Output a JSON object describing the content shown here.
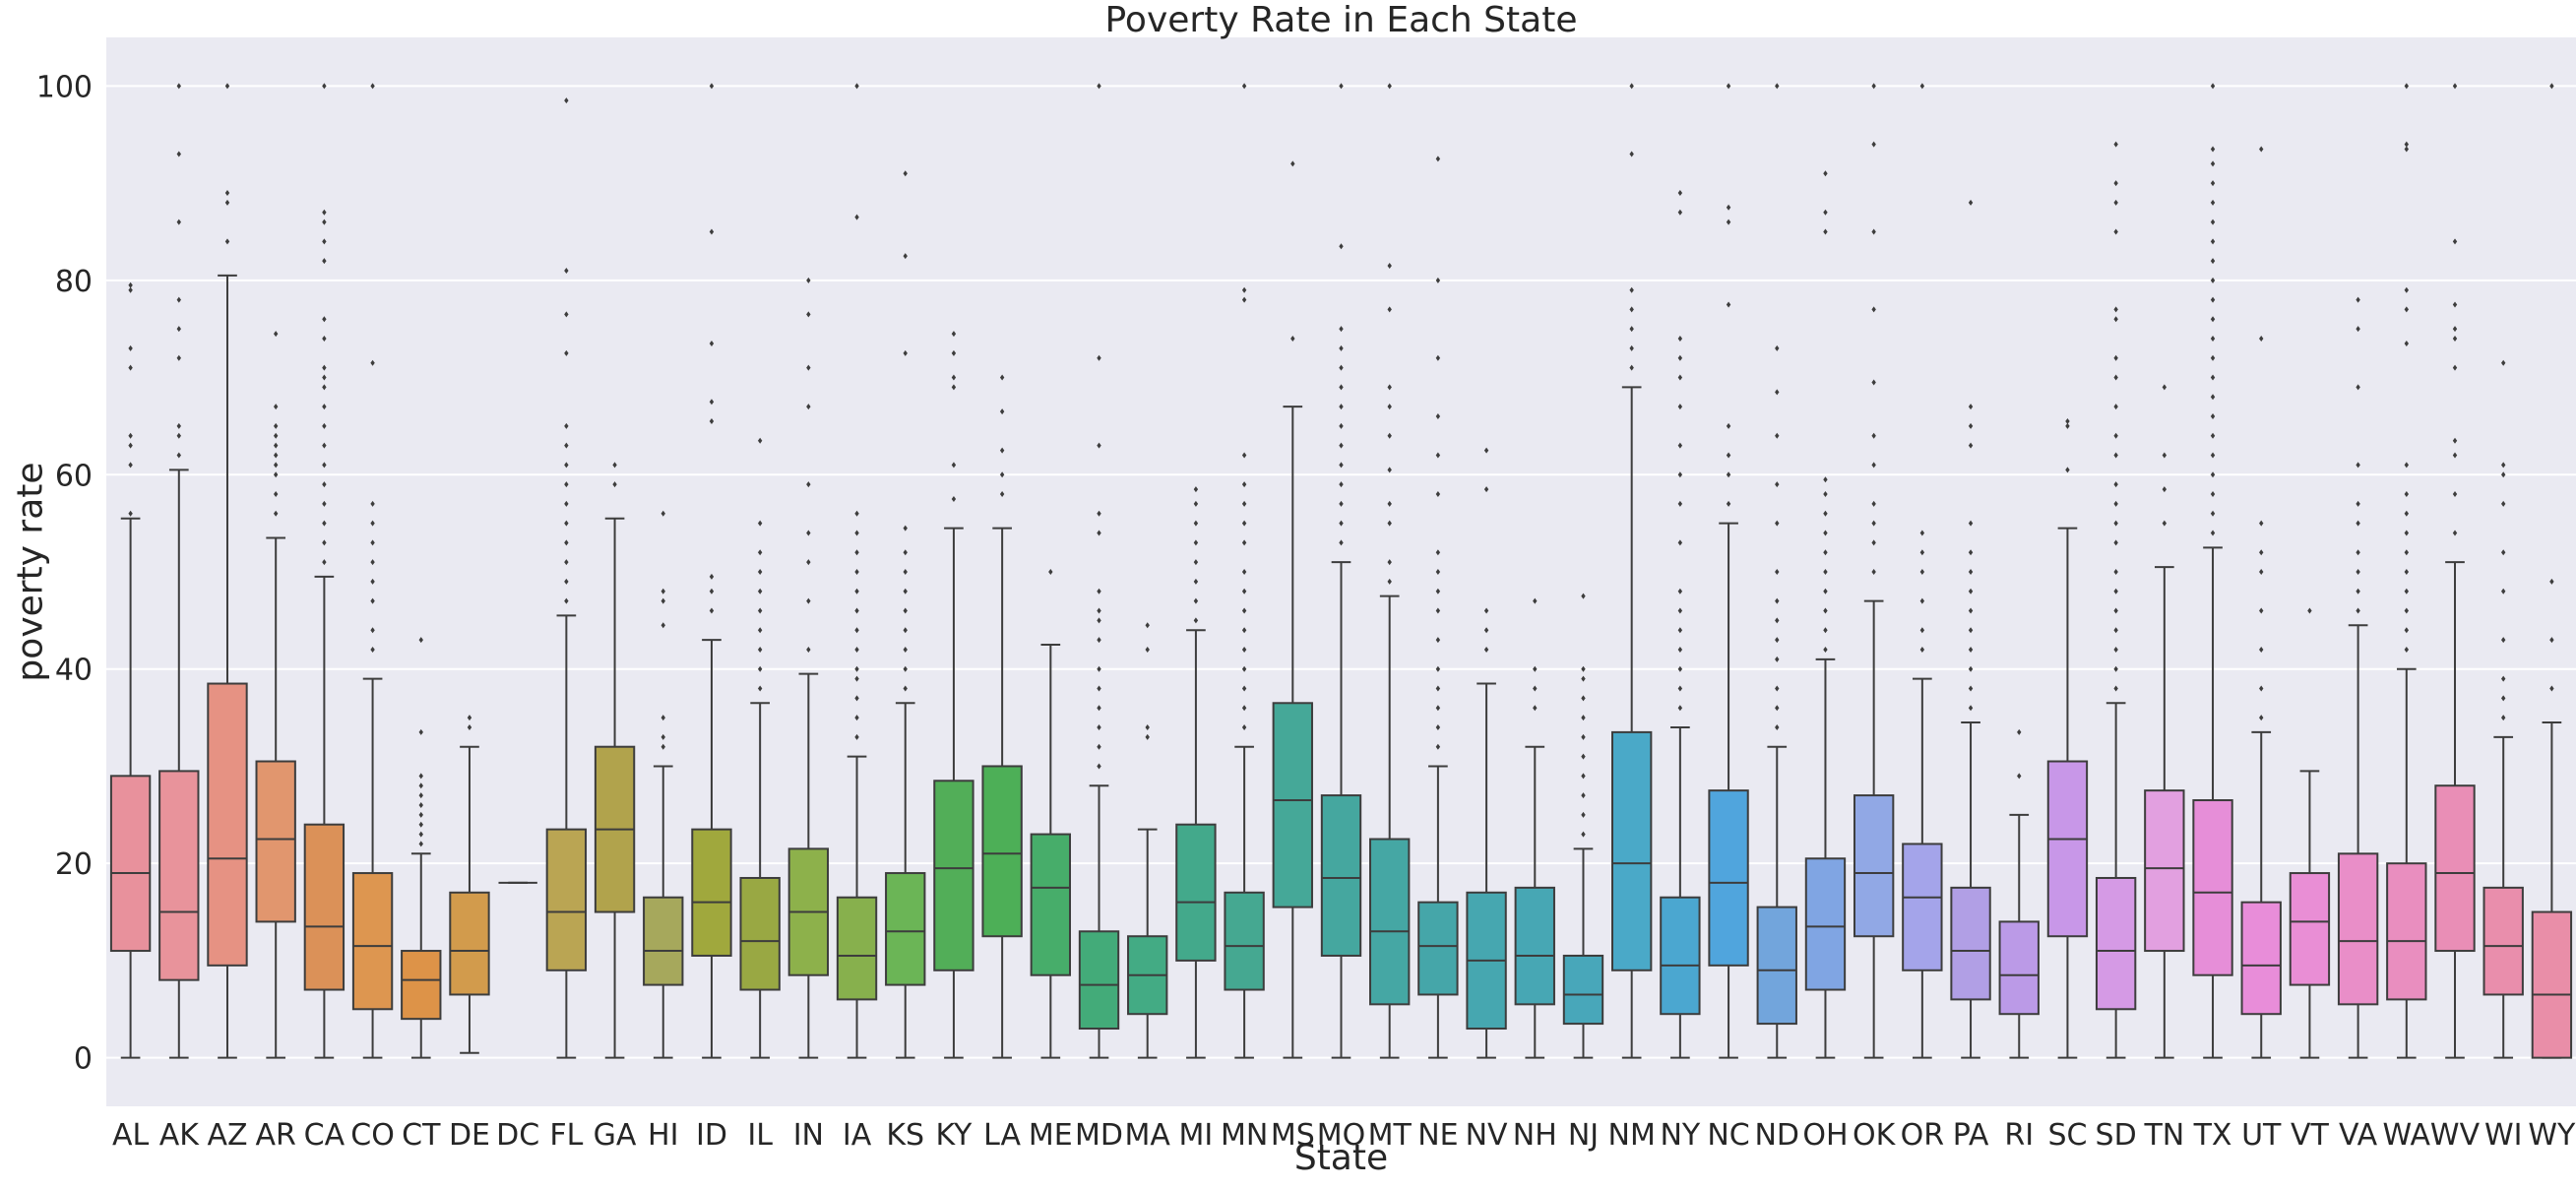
{
  "chart_data": {
    "type": "box",
    "title": "Poverty Rate in Each State",
    "xlabel": "State",
    "ylabel": "poverty rate",
    "ylim": [
      -5,
      105
    ],
    "yticks": [
      0,
      20,
      40,
      60,
      80,
      100
    ],
    "ytick_labels": [
      "0",
      "20",
      "40",
      "60",
      "80",
      "100"
    ],
    "grid": true,
    "background": "#eaeaf2",
    "categories": [
      "AL",
      "AK",
      "AZ",
      "AR",
      "CA",
      "CO",
      "CT",
      "DE",
      "DC",
      "FL",
      "GA",
      "HI",
      "ID",
      "IL",
      "IN",
      "IA",
      "KS",
      "KY",
      "LA",
      "ME",
      "MD",
      "MA",
      "MI",
      "MN",
      "MS",
      "MO",
      "MT",
      "NE",
      "NV",
      "NH",
      "NJ",
      "NM",
      "NY",
      "NC",
      "ND",
      "OH",
      "OK",
      "OR",
      "PA",
      "RI",
      "SC",
      "SD",
      "TN",
      "TX",
      "UT",
      "VT",
      "VA",
      "WA",
      "WV",
      "WI",
      "WY"
    ],
    "colors": [
      "#e8919c",
      "#e8939b",
      "#e69283",
      "#e1966e",
      "#db9158",
      "#dd9650",
      "#dd9348",
      "#d29b4c",
      "#c9a050",
      "#baa553",
      "#b1a34c",
      "#a6a85c",
      "#a0a83d",
      "#99a843",
      "#8db14b",
      "#87b04d",
      "#6bb556",
      "#52ae58",
      "#4daf57",
      "#47ad6a",
      "#43ab79",
      "#43ab84",
      "#43a98b",
      "#45a891",
      "#45a898",
      "#45a79f",
      "#45a7a4",
      "#45a6a9",
      "#46a7b0",
      "#47a7b4",
      "#48a7ba",
      "#4aa9c8",
      "#4ba7d0",
      "#50a5dd",
      "#72a5dc",
      "#80a5e3",
      "#91a8e5",
      "#a4a4ea",
      "#b19fe5",
      "#bb9ae7",
      "#c897e8",
      "#d59ae5",
      "#e2a0e0",
      "#e68ed8",
      "#e88dd9",
      "#e98ed5",
      "#e98ec8",
      "#e98ebf",
      "#e98eb6",
      "#e98eac",
      "#e98ea8"
    ],
    "boxes": [
      {
        "state": "AL",
        "whislo": 0,
        "q1": 11,
        "med": 19,
        "q3": 29,
        "whishi": 55.5,
        "fliers": [
          56,
          61,
          63,
          64,
          71,
          73,
          79,
          79.5
        ]
      },
      {
        "state": "AK",
        "whislo": 0,
        "q1": 8,
        "med": 15,
        "q3": 29.5,
        "whishi": 60.5,
        "fliers": [
          62,
          64,
          65,
          72,
          75,
          78,
          86,
          93,
          100
        ]
      },
      {
        "state": "AZ",
        "whislo": 0,
        "q1": 9.5,
        "med": 20.5,
        "q3": 38.5,
        "whishi": 80.5,
        "fliers": [
          84,
          88,
          89,
          100
        ]
      },
      {
        "state": "AR",
        "whislo": 0,
        "q1": 14,
        "med": 22.5,
        "q3": 30.5,
        "whishi": 53.5,
        "fliers": [
          56,
          58,
          60,
          61,
          62,
          63,
          64,
          65,
          67,
          74.5
        ]
      },
      {
        "state": "CA",
        "whislo": 0,
        "q1": 7,
        "med": 13.5,
        "q3": 24,
        "whishi": 49.5,
        "fliers": [
          51,
          53,
          55,
          57,
          59,
          61,
          63,
          65,
          67,
          69,
          70,
          71,
          74,
          76,
          82,
          84,
          86,
          87,
          100
        ]
      },
      {
        "state": "CO",
        "whislo": 0,
        "q1": 5,
        "med": 11.5,
        "q3": 19,
        "whishi": 39,
        "fliers": [
          42,
          44,
          47,
          49,
          51,
          53,
          55,
          57,
          71.5,
          100
        ]
      },
      {
        "state": "CT",
        "whislo": 0,
        "q1": 4,
        "med": 8,
        "q3": 11,
        "whishi": 21,
        "fliers": [
          22,
          23,
          24,
          25,
          26,
          27,
          28,
          29,
          33.5,
          43
        ]
      },
      {
        "state": "DE",
        "whislo": 0.5,
        "q1": 6.5,
        "med": 11,
        "q3": 17,
        "whishi": 32,
        "fliers": [
          34,
          35
        ]
      },
      {
        "state": "DC",
        "whislo": 18,
        "q1": 18,
        "med": 18,
        "q3": 18,
        "whishi": 18,
        "fliers": []
      },
      {
        "state": "FL",
        "whislo": 0,
        "q1": 9,
        "med": 15,
        "q3": 23.5,
        "whishi": 45.5,
        "fliers": [
          47,
          49,
          51,
          53,
          55,
          57,
          59,
          61,
          63,
          65,
          72.5,
          76.5,
          81,
          98.5
        ]
      },
      {
        "state": "GA",
        "whislo": 0,
        "q1": 15,
        "med": 23.5,
        "q3": 32,
        "whishi": 55.5,
        "fliers": [
          59,
          61
        ]
      },
      {
        "state": "HI",
        "whislo": 0,
        "q1": 7.5,
        "med": 11,
        "q3": 16.5,
        "whishi": 30,
        "fliers": [
          32,
          33,
          35,
          44.5,
          47,
          48,
          56
        ]
      },
      {
        "state": "ID",
        "whislo": 0,
        "q1": 10.5,
        "med": 16,
        "q3": 23.5,
        "whishi": 43,
        "fliers": [
          46,
          48,
          49.5,
          65.5,
          67.5,
          73.5,
          85,
          100
        ]
      },
      {
        "state": "IL",
        "whislo": 0,
        "q1": 7,
        "med": 12,
        "q3": 18.5,
        "whishi": 36.5,
        "fliers": [
          38,
          40,
          42,
          44,
          46,
          48,
          50,
          52,
          55,
          63.5
        ]
      },
      {
        "state": "IN",
        "whislo": 0,
        "q1": 8.5,
        "med": 15,
        "q3": 21.5,
        "whishi": 39.5,
        "fliers": [
          42,
          47,
          51,
          54,
          59,
          67,
          71,
          76.5,
          80
        ]
      },
      {
        "state": "IA",
        "whislo": 0,
        "q1": 6,
        "med": 10.5,
        "q3": 16.5,
        "whishi": 31,
        "fliers": [
          33,
          35,
          37,
          39,
          40,
          42,
          44,
          46,
          48,
          50,
          52,
          54,
          56,
          86.5,
          100
        ]
      },
      {
        "state": "KS",
        "whislo": 0,
        "q1": 7.5,
        "med": 13,
        "q3": 19,
        "whishi": 36.5,
        "fliers": [
          38,
          40,
          42,
          44,
          46,
          48,
          50,
          52,
          54.5,
          72.5,
          82.5,
          91
        ]
      },
      {
        "state": "KY",
        "whislo": 0,
        "q1": 9,
        "med": 19.5,
        "q3": 28.5,
        "whishi": 54.5,
        "fliers": [
          57.5,
          61,
          69,
          70,
          72.5,
          74.5
        ]
      },
      {
        "state": "LA",
        "whislo": 0,
        "q1": 12.5,
        "med": 21,
        "q3": 30,
        "whishi": 54.5,
        "fliers": [
          58,
          60,
          62.5,
          66.5,
          70
        ]
      },
      {
        "state": "ME",
        "whislo": 0,
        "q1": 8.5,
        "med": 17.5,
        "q3": 23,
        "whishi": 42.5,
        "fliers": [
          50
        ]
      },
      {
        "state": "MD",
        "whislo": 0,
        "q1": 3,
        "med": 7.5,
        "q3": 13,
        "whishi": 28,
        "fliers": [
          30,
          32,
          34,
          36,
          38,
          40,
          43,
          45,
          46,
          48,
          54,
          56,
          63,
          72,
          100
        ]
      },
      {
        "state": "MA",
        "whislo": 0,
        "q1": 4.5,
        "med": 8.5,
        "q3": 12.5,
        "whishi": 23.5,
        "fliers": [
          33,
          34,
          42,
          44.5
        ]
      },
      {
        "state": "MI",
        "whislo": 0,
        "q1": 10,
        "med": 16,
        "q3": 24,
        "whishi": 44,
        "fliers": [
          45,
          47,
          49,
          51,
          53,
          55,
          57,
          58.5
        ]
      },
      {
        "state": "MN",
        "whislo": 0,
        "q1": 7,
        "med": 11.5,
        "q3": 17,
        "whishi": 32,
        "fliers": [
          34,
          36,
          38,
          40,
          42,
          44,
          46,
          48,
          50,
          53,
          55,
          57,
          59,
          62,
          78,
          79,
          100
        ]
      },
      {
        "state": "MS",
        "whislo": 0,
        "q1": 15.5,
        "med": 26.5,
        "q3": 36.5,
        "whishi": 67,
        "fliers": [
          74,
          92
        ]
      },
      {
        "state": "MO",
        "whislo": 0,
        "q1": 10.5,
        "med": 18.5,
        "q3": 27,
        "whishi": 51,
        "fliers": [
          53,
          55,
          57,
          59,
          61,
          63,
          65,
          67,
          69,
          71,
          73,
          75,
          83.5,
          100
        ]
      },
      {
        "state": "MT",
        "whislo": 0,
        "q1": 5.5,
        "med": 13,
        "q3": 22.5,
        "whishi": 47.5,
        "fliers": [
          49,
          51,
          55,
          57,
          60.5,
          64,
          67,
          69,
          77,
          81.5,
          100
        ]
      },
      {
        "state": "NE",
        "whislo": 0,
        "q1": 6.5,
        "med": 11.5,
        "q3": 16,
        "whishi": 30,
        "fliers": [
          32,
          34,
          36,
          38,
          40,
          43,
          46,
          48,
          50,
          52,
          58,
          62,
          66,
          72,
          80,
          92.5
        ]
      },
      {
        "state": "NV",
        "whislo": 0,
        "q1": 3,
        "med": 10,
        "q3": 17,
        "whishi": 38.5,
        "fliers": [
          42,
          44,
          46,
          58.5,
          62.5
        ]
      },
      {
        "state": "NH",
        "whislo": 0,
        "q1": 5.5,
        "med": 10.5,
        "q3": 17.5,
        "whishi": 32,
        "fliers": [
          36,
          38,
          40,
          47
        ]
      },
      {
        "state": "NJ",
        "whislo": 0,
        "q1": 3.5,
        "med": 6.5,
        "q3": 10.5,
        "whishi": 21.5,
        "fliers": [
          23,
          25,
          27,
          29,
          31,
          33,
          35,
          37,
          39,
          40,
          47.5
        ]
      },
      {
        "state": "NM",
        "whislo": 0,
        "q1": 9,
        "med": 20,
        "q3": 33.5,
        "whishi": 69,
        "fliers": [
          71,
          73,
          75,
          77,
          79,
          93,
          100
        ]
      },
      {
        "state": "NY",
        "whislo": 0,
        "q1": 4.5,
        "med": 9.5,
        "q3": 16.5,
        "whishi": 34,
        "fliers": [
          36,
          38,
          40,
          42,
          44,
          46,
          48,
          53,
          57,
          60,
          63,
          67,
          70,
          72,
          74,
          87,
          89
        ]
      },
      {
        "state": "NC",
        "whislo": 0,
        "q1": 9.5,
        "med": 18,
        "q3": 27.5,
        "whishi": 55,
        "fliers": [
          57,
          60,
          62,
          65,
          77.5,
          86,
          87.5,
          100
        ]
      },
      {
        "state": "ND",
        "whislo": 0,
        "q1": 3.5,
        "med": 9,
        "q3": 15.5,
        "whishi": 32,
        "fliers": [
          34,
          36,
          38,
          41,
          43,
          45,
          47,
          50,
          55,
          59,
          64,
          68.5,
          73,
          100
        ]
      },
      {
        "state": "OH",
        "whislo": 0,
        "q1": 7,
        "med": 13.5,
        "q3": 20.5,
        "whishi": 41,
        "fliers": [
          42,
          44,
          46,
          48,
          50,
          52,
          54,
          56,
          58,
          59.5,
          85,
          87,
          91
        ]
      },
      {
        "state": "OK",
        "whislo": 0,
        "q1": 12.5,
        "med": 19,
        "q3": 27,
        "whishi": 47,
        "fliers": [
          50,
          53,
          55,
          57,
          61,
          64,
          69.5,
          77,
          85,
          94,
          100
        ]
      },
      {
        "state": "OR",
        "whislo": 0,
        "q1": 9,
        "med": 16.5,
        "q3": 22,
        "whishi": 39,
        "fliers": [
          42,
          44,
          47,
          50,
          52,
          54,
          100
        ]
      },
      {
        "state": "PA",
        "whislo": 0,
        "q1": 6,
        "med": 11,
        "q3": 17.5,
        "whishi": 34.5,
        "fliers": [
          36,
          38,
          40,
          42,
          44,
          46,
          48,
          50,
          52,
          55,
          63,
          65,
          67,
          88
        ]
      },
      {
        "state": "RI",
        "whislo": 0,
        "q1": 4.5,
        "med": 8.5,
        "q3": 14,
        "whishi": 25,
        "fliers": [
          29,
          33.5
        ]
      },
      {
        "state": "SC",
        "whislo": 0,
        "q1": 12.5,
        "med": 22.5,
        "q3": 30.5,
        "whishi": 54.5,
        "fliers": [
          60.5,
          65,
          65.5
        ]
      },
      {
        "state": "SD",
        "whislo": 0,
        "q1": 5,
        "med": 11,
        "q3": 18.5,
        "whishi": 36.5,
        "fliers": [
          38,
          40,
          42,
          44,
          46,
          48,
          50,
          53,
          55,
          57,
          59,
          62,
          64,
          67,
          70,
          72,
          76,
          77,
          85,
          88,
          90,
          94
        ]
      },
      {
        "state": "TN",
        "whislo": 0,
        "q1": 11,
        "med": 19.5,
        "q3": 27.5,
        "whishi": 50.5,
        "fliers": [
          55,
          58.5,
          62,
          69
        ]
      },
      {
        "state": "TX",
        "whislo": 0,
        "q1": 8.5,
        "med": 17,
        "q3": 26.5,
        "whishi": 52.5,
        "fliers": [
          54,
          56,
          58,
          60,
          62,
          64,
          66,
          68,
          70,
          72,
          74,
          76,
          78,
          80,
          82,
          84,
          86,
          88,
          90,
          92,
          93.5,
          100
        ]
      },
      {
        "state": "UT",
        "whislo": 0,
        "q1": 4.5,
        "med": 9.5,
        "q3": 16,
        "whishi": 33.5,
        "fliers": [
          35,
          38,
          42,
          46,
          50,
          52,
          55,
          74,
          93.5
        ]
      },
      {
        "state": "VT",
        "whislo": 0,
        "q1": 7.5,
        "med": 14,
        "q3": 19,
        "whishi": 29.5,
        "fliers": [
          46
        ]
      },
      {
        "state": "VA",
        "whislo": 0,
        "q1": 5.5,
        "med": 12,
        "q3": 21,
        "whishi": 44.5,
        "fliers": [
          46,
          48,
          50,
          52,
          55,
          57,
          61,
          69,
          75,
          78
        ]
      },
      {
        "state": "WA",
        "whislo": 0,
        "q1": 6,
        "med": 12,
        "q3": 20,
        "whishi": 40,
        "fliers": [
          42,
          44,
          46,
          48,
          50,
          52,
          54,
          56,
          58,
          61,
          73.5,
          77,
          79,
          93.5,
          94,
          100
        ]
      },
      {
        "state": "WV",
        "whislo": 0,
        "q1": 11,
        "med": 19,
        "q3": 28,
        "whishi": 51,
        "fliers": [
          54,
          58,
          62,
          63.5,
          71,
          74,
          75,
          77.5,
          84,
          100
        ]
      },
      {
        "state": "WI",
        "whislo": 0,
        "q1": 6.5,
        "med": 11.5,
        "q3": 17.5,
        "whishi": 33,
        "fliers": [
          35,
          37,
          39,
          43,
          48,
          52,
          57,
          60,
          61,
          71.5
        ]
      },
      {
        "state": "WY",
        "whislo": 0,
        "q1": 0,
        "med": 6.5,
        "q3": 15,
        "whishi": 34.5,
        "fliers": [
          38,
          43,
          49,
          100
        ]
      }
    ]
  }
}
